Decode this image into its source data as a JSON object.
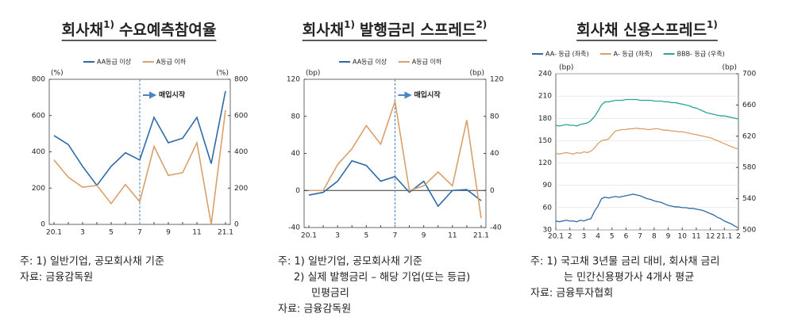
{
  "chart_data": [
    {
      "type": "line",
      "title": [
        {
          "text": "회사채"
        },
        {
          "text": "1)",
          "sup": true
        },
        {
          "text": "수요예측참여율"
        }
      ],
      "categories": [
        "20.1",
        null,
        "3",
        null,
        "5",
        null,
        "7",
        null,
        "9",
        null,
        "11",
        null,
        "21.1"
      ],
      "series": [
        {
          "name": "AA등급 이상",
          "color": "#2e6aa8",
          "values": [
            490,
            440,
            320,
            215,
            320,
            395,
            355,
            590,
            450,
            475,
            590,
            335,
            735
          ]
        },
        {
          "name": "A등급 이하",
          "color": "#d9a06b",
          "values": [
            355,
            260,
            205,
            215,
            115,
            220,
            125,
            430,
            270,
            285,
            450,
            0,
            630
          ]
        }
      ],
      "ylim": [
        0,
        800
      ],
      "yticks": [
        0,
        200,
        400,
        600,
        800
      ],
      "y_label": "(%)",
      "y2lim": [
        0,
        800
      ],
      "y2ticks": [
        0,
        200,
        400,
        600,
        800
      ],
      "y2_label": "(%)",
      "annotation": {
        "text": "매입시작",
        "at": "7"
      },
      "notes": [
        "주: 1) 일반기업, 공모회사채 기준",
        "자료: 금융감독원"
      ]
    },
    {
      "type": "line",
      "title": [
        {
          "text": "회사채"
        },
        {
          "text": "1)",
          "sup": true
        },
        {
          "text": "발행금리 스프레드"
        },
        {
          "text": "2)",
          "sup": true
        }
      ],
      "categories": [
        "20.1",
        null,
        "3",
        null,
        "5",
        null,
        "7",
        null,
        "9",
        null,
        "11",
        null,
        "21.1"
      ],
      "series": [
        {
          "name": "AA등급 이상",
          "color": "#2e6aa8",
          "values": [
            -5,
            -2,
            10,
            32,
            27,
            10,
            15,
            -2,
            10,
            -17,
            0,
            1,
            -11
          ]
        },
        {
          "name": "A등급 이하",
          "color": "#d9a06b",
          "values": [
            0,
            0,
            28,
            45,
            70,
            50,
            96,
            0,
            5,
            20,
            5,
            76,
            -30
          ]
        }
      ],
      "ylim": [
        -40,
        120
      ],
      "yticks": [
        -40,
        0,
        40,
        80,
        120
      ],
      "y_label": "(bp)",
      "y2lim": [
        -40,
        120
      ],
      "y2ticks": [
        -40,
        0,
        40,
        80,
        120
      ],
      "y2_label": "(bp)",
      "zero_line": true,
      "annotation": {
        "text": "매입시작",
        "at": "7"
      },
      "notes": [
        "주: 1) 일반기업, 공모회사채 기준",
        "2) 실제 발행금리 – 해당 기업(또는 등급)",
        "민평금리",
        "자료: 금융감독원"
      ]
    },
    {
      "type": "line",
      "title": [
        {
          "text": "회사채 신용스프레드"
        },
        {
          "text": "1)",
          "sup": true
        }
      ],
      "x": [
        0,
        0.25,
        0.5,
        0.75,
        1,
        1.25,
        1.5,
        1.75,
        2,
        2.25,
        2.5,
        2.75,
        3,
        3.25,
        3.5,
        3.75,
        4,
        4.25,
        4.5,
        4.75,
        5,
        5.25,
        5.5,
        5.75,
        6,
        6.25,
        6.5,
        6.75,
        7,
        7.25,
        7.5,
        7.75,
        8,
        8.25,
        8.5,
        8.75,
        9,
        9.25,
        9.5,
        9.75,
        10,
        10.25,
        10.5,
        10.75,
        11,
        11.25,
        11.5,
        11.75,
        12,
        12.25,
        12.5,
        12.75,
        13
      ],
      "xlim": [
        0,
        13
      ],
      "xticks": [
        {
          "value": 0,
          "label": "20.1"
        },
        {
          "value": 1,
          "label": "2"
        },
        {
          "value": 2,
          "label": "3"
        },
        {
          "value": 3,
          "label": "4"
        },
        {
          "value": 4,
          "label": "5"
        },
        {
          "value": 5,
          "label": "6"
        },
        {
          "value": 6,
          "label": "7"
        },
        {
          "value": 7,
          "label": "8"
        },
        {
          "value": 8,
          "label": "9"
        },
        {
          "value": 9,
          "label": "10"
        },
        {
          "value": 10,
          "label": "11"
        },
        {
          "value": 11,
          "label": "12"
        },
        {
          "value": 12,
          "label": "21.1"
        },
        {
          "value": 13,
          "label": "2"
        }
      ],
      "series": [
        {
          "name": "AA- 등급 (좌축)",
          "color": "#2e6aa8",
          "values": [
            42,
            41,
            42,
            43,
            42,
            42,
            41,
            43,
            42,
            44,
            45,
            55,
            62,
            72,
            74,
            73,
            74,
            75,
            74,
            75,
            76,
            77,
            78,
            77,
            76,
            74,
            72,
            71,
            69,
            68,
            67,
            65,
            63,
            62,
            61,
            61,
            60,
            60,
            59,
            59,
            58,
            57,
            56,
            54,
            52,
            50,
            47,
            45,
            42,
            40,
            38,
            35,
            33
          ]
        },
        {
          "name": "A- 등급 (좌축)",
          "color": "#d9a06b",
          "values": [
            133,
            132,
            133,
            134,
            133,
            132,
            134,
            133,
            135,
            134,
            136,
            140,
            146,
            150,
            151,
            152,
            158,
            163,
            164,
            165,
            165,
            166,
            166,
            167,
            166,
            166,
            165,
            165,
            166,
            166,
            165,
            164,
            164,
            163,
            163,
            162,
            162,
            161,
            160,
            159,
            158,
            157,
            156,
            155,
            154,
            152,
            150,
            148,
            146,
            144,
            142,
            140,
            139
          ]
        },
        {
          "name": "BBB- 등급 (우축)",
          "color": "#2aa39a",
          "axis": "y2",
          "values": [
            634,
            633,
            634,
            635,
            634,
            634,
            633,
            635,
            636,
            637,
            640,
            645,
            652,
            660,
            664,
            664,
            665,
            666,
            666,
            666,
            667,
            667,
            667,
            667,
            666,
            666,
            666,
            666,
            665,
            665,
            665,
            664,
            664,
            663,
            663,
            662,
            661,
            660,
            659,
            657,
            656,
            654,
            652,
            650,
            649,
            648,
            647,
            646,
            646,
            645,
            644,
            643,
            642
          ]
        }
      ],
      "ylim": [
        30,
        240
      ],
      "yticks": [
        30,
        60,
        90,
        120,
        150,
        180,
        210,
        240
      ],
      "y_label": "(bp)",
      "y2lim": [
        500,
        700
      ],
      "y2ticks": [
        500,
        540,
        580,
        620,
        660,
        700
      ],
      "y2_label": "(bp)",
      "grid": true,
      "notes": [
        "주: 1) 국고채 3년물 금리 대비, 회사채 금리",
        "는 민간신용평가사 4개사 평균",
        "자료: 금융투자협회"
      ]
    }
  ]
}
